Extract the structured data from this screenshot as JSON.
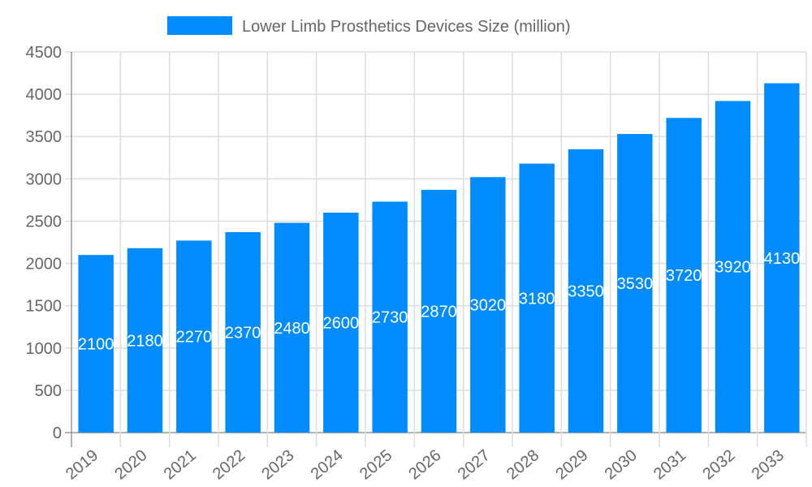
{
  "chart_data": {
    "type": "bar",
    "categories": [
      "2019",
      "2020",
      "2021",
      "2022",
      "2023",
      "2024",
      "2025",
      "2026",
      "2027",
      "2028",
      "2029",
      "2030",
      "2031",
      "2032",
      "2033"
    ],
    "series": [
      {
        "name": "Lower Limb Prosthetics Devices Size (million)",
        "values": [
          2100,
          2180,
          2270,
          2370,
          2480,
          2600,
          2730,
          2870,
          3020,
          3180,
          3350,
          3530,
          3720,
          3920,
          4130
        ],
        "color": "#008cff"
      }
    ],
    "yticks": [
      0,
      500,
      1000,
      1500,
      2000,
      2500,
      3000,
      3500,
      4000,
      4500
    ],
    "ylim": [
      0,
      4500
    ],
    "grid": true,
    "legend_position": "top",
    "data_labels": true
  }
}
